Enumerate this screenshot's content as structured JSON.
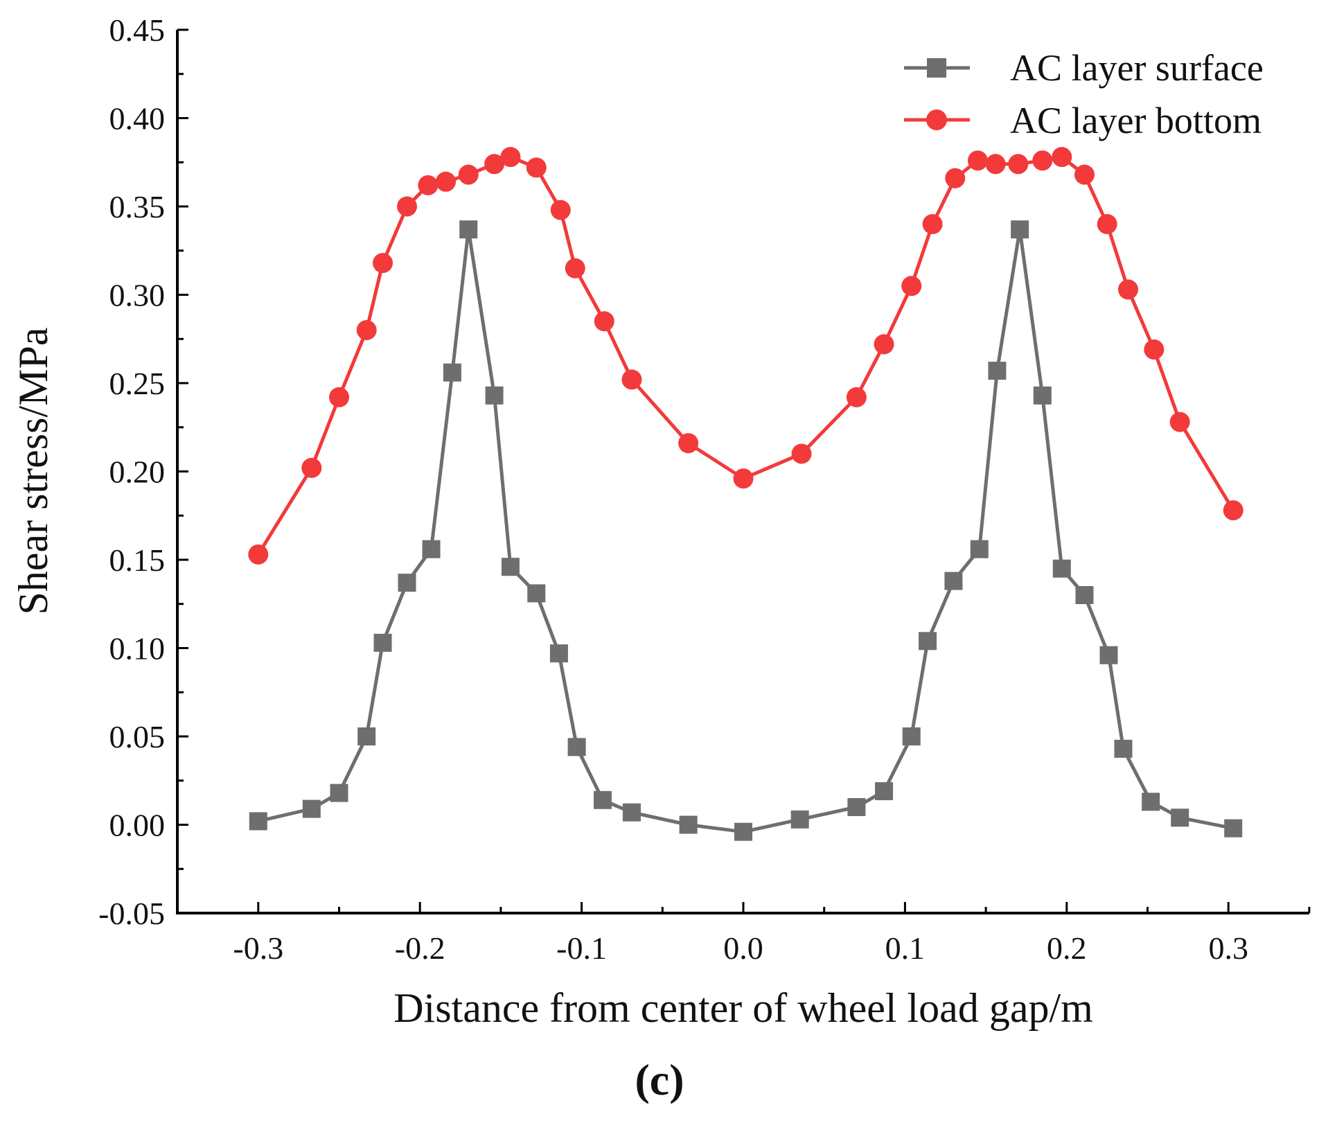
{
  "chart_data": {
    "type": "line",
    "title": "",
    "xlabel": "Distance from center of wheel load gap/m",
    "ylabel": "Shear stress/MPa",
    "xlim": [
      -0.35,
      0.35
    ],
    "ylim": [
      -0.05,
      0.45
    ],
    "xticks": [
      -0.3,
      -0.2,
      -0.1,
      0.0,
      0.1,
      0.2,
      0.3
    ],
    "xtick_labels": [
      "-0.3",
      "-0.2",
      "-0.1",
      "0.0",
      "0.1",
      "0.2",
      "0.3"
    ],
    "yticks": [
      -0.05,
      0.0,
      0.05,
      0.1,
      0.15,
      0.2,
      0.25,
      0.3,
      0.35,
      0.4,
      0.45
    ],
    "ytick_labels": [
      "-0.05",
      "0.00",
      "0.05",
      "0.10",
      "0.15",
      "0.20",
      "0.25",
      "0.30",
      "0.35",
      "0.40",
      "0.45"
    ],
    "grid": false,
    "legend_position": "top-right",
    "panel_label": "(c)",
    "series": [
      {
        "name": "AC layer surface",
        "color": "#6e6e6e",
        "marker": "square",
        "x": [
          -0.3,
          -0.267,
          -0.25,
          -0.233,
          -0.223,
          -0.208,
          -0.193,
          -0.18,
          -0.17,
          -0.154,
          -0.144,
          -0.128,
          -0.114,
          -0.103,
          -0.087,
          -0.069,
          -0.034,
          0.0,
          0.035,
          0.07,
          0.087,
          0.104,
          0.114,
          0.13,
          0.146,
          0.157,
          0.171,
          0.185,
          0.197,
          0.211,
          0.226,
          0.235,
          0.252,
          0.27,
          0.303
        ],
        "values": [
          0.002,
          0.009,
          0.018,
          0.05,
          0.103,
          0.137,
          0.156,
          0.256,
          0.337,
          0.243,
          0.146,
          0.131,
          0.097,
          0.044,
          0.014,
          0.007,
          0.0,
          -0.004,
          0.003,
          0.01,
          0.019,
          0.05,
          0.104,
          0.138,
          0.156,
          0.257,
          0.337,
          0.243,
          0.145,
          0.13,
          0.096,
          0.043,
          0.013,
          0.004,
          -0.002
        ]
      },
      {
        "name": "AC layer bottom",
        "color": "#f23a3a",
        "marker": "circle",
        "x": [
          -0.3,
          -0.267,
          -0.25,
          -0.233,
          -0.223,
          -0.208,
          -0.195,
          -0.184,
          -0.17,
          -0.154,
          -0.144,
          -0.128,
          -0.113,
          -0.104,
          -0.086,
          -0.069,
          -0.034,
          0.0,
          0.036,
          0.07,
          0.087,
          0.104,
          0.117,
          0.131,
          0.145,
          0.156,
          0.17,
          0.185,
          0.197,
          0.211,
          0.225,
          0.238,
          0.254,
          0.27,
          0.303
        ],
        "values": [
          0.153,
          0.202,
          0.242,
          0.28,
          0.318,
          0.35,
          0.362,
          0.364,
          0.368,
          0.374,
          0.378,
          0.372,
          0.348,
          0.315,
          0.285,
          0.252,
          0.216,
          0.196,
          0.21,
          0.242,
          0.272,
          0.305,
          0.34,
          0.366,
          0.376,
          0.374,
          0.374,
          0.376,
          0.378,
          0.368,
          0.34,
          0.303,
          0.269,
          0.228,
          0.178
        ]
      }
    ]
  }
}
